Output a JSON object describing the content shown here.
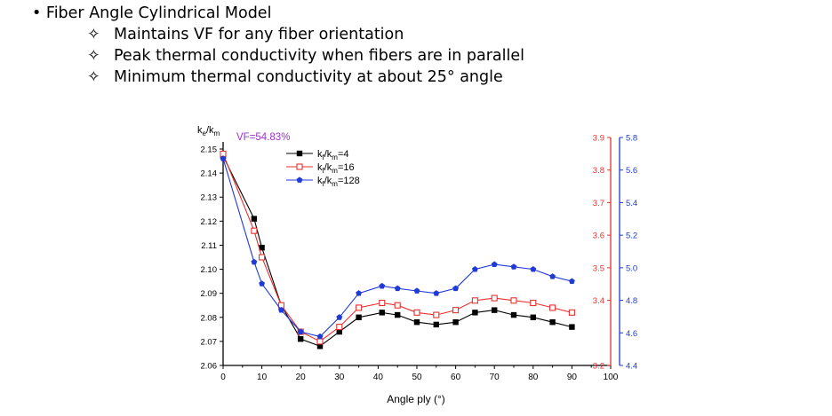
{
  "slide": {
    "bullet_main": "Fiber Angle Cylindrical Model",
    "bullet_marker": "•",
    "sub_marker": "✧",
    "sub_bullets": [
      "Maintains VF for any fiber orientation",
      "Peak thermal conductivity when fibers are in parallel",
      "Minimum thermal conductivity at about 25° angle"
    ]
  },
  "chart_data": {
    "type": "line",
    "annotation": "VF=54.83%",
    "annotation_color": "#9933cc",
    "xlabel": "Angle ply (°)",
    "ylabel_left": "k",
    "ylabel_left_sub1": "e",
    "ylabel_left_mid": "/k",
    "ylabel_left_sub2": "m",
    "xlim": [
      0,
      100
    ],
    "xticks": [
      "0",
      "10",
      "20",
      "30",
      "40",
      "50",
      "60",
      "70",
      "80",
      "90",
      "100"
    ],
    "axes": {
      "left": {
        "ylim": [
          2.06,
          2.155
        ],
        "ticks": [
          "2.06",
          "2.07",
          "2.08",
          "2.09",
          "2.10",
          "2.11",
          "2.12",
          "2.13",
          "2.14",
          "2.15"
        ],
        "color": "#000000"
      },
      "red": {
        "ylim": [
          3.2,
          3.9
        ],
        "ticks": [
          "3.2",
          "3.4",
          "3.5",
          "3.6",
          "3.7",
          "3.8",
          "3.9"
        ],
        "color": "#e8312f"
      },
      "blue": {
        "ylim": [
          4.4,
          5.8
        ],
        "ticks": [
          "4.4",
          "4.6",
          "4.8",
          "5.0",
          "5.2",
          "5.4",
          "5.6",
          "5.8"
        ],
        "color": "#1f3ad6"
      }
    },
    "x": [
      0,
      8,
      10,
      15,
      20,
      25,
      30,
      35,
      41,
      45,
      50,
      55,
      60,
      65,
      70,
      75,
      80,
      85,
      90
    ],
    "series": [
      {
        "legend_k": "k",
        "legend_sub1": "f",
        "legend_mid": "/k",
        "legend_sub2": "m",
        "legend_val": "=4",
        "color": "#000000",
        "marker": "filled-square",
        "axis": "left",
        "values": [
          2.147,
          2.121,
          2.109,
          2.085,
          2.071,
          2.068,
          2.074,
          2.08,
          2.082,
          2.081,
          2.078,
          2.077,
          2.078,
          2.082,
          2.083,
          2.081,
          2.08,
          2.078,
          2.076
        ]
      },
      {
        "legend_k": "k",
        "legend_sub1": "f",
        "legend_mid": "/k",
        "legend_sub2": "m",
        "legend_val": "=16",
        "color": "#e8312f",
        "marker": "open-square",
        "axis": "left",
        "values": [
          2.148,
          2.116,
          2.105,
          2.085,
          2.074,
          2.07,
          2.076,
          2.084,
          2.086,
          2.085,
          2.082,
          2.081,
          2.083,
          2.087,
          2.088,
          2.087,
          2.086,
          2.084,
          2.082
        ]
      },
      {
        "legend_k": "k",
        "legend_sub1": "f",
        "legend_mid": "/k",
        "legend_sub2": "m",
        "legend_val": "=128",
        "color": "#1f3ad6",
        "marker": "filled-pentagon",
        "axis": "left",
        "values": [
          2.146,
          2.103,
          2.094,
          2.083,
          2.074,
          2.072,
          2.08,
          2.09,
          2.093,
          2.092,
          2.091,
          2.09,
          2.092,
          2.1,
          2.102,
          2.101,
          2.1,
          2.097,
          2.095
        ]
      }
    ]
  }
}
